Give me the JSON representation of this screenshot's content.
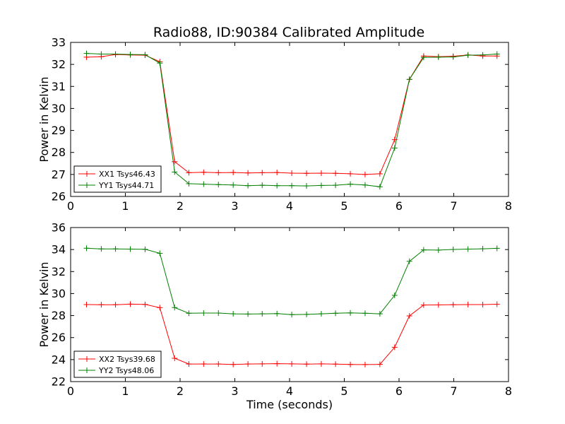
{
  "figure": {
    "title": "Radio88, ID:90384 Calibrated Amplitude"
  },
  "chart_data": [
    {
      "type": "line",
      "title": "Radio88, ID:90384 Calibrated Amplitude",
      "xlabel": "",
      "ylabel": "Power in Kelvin",
      "xlim": [
        0,
        8
      ],
      "ylim": [
        26,
        33
      ],
      "xticks": [
        "0",
        "1",
        "2",
        "3",
        "4",
        "5",
        "6",
        "7",
        "8"
      ],
      "yticks": [
        "26",
        "27",
        "28",
        "29",
        "30",
        "31",
        "32",
        "33"
      ],
      "grid": false,
      "legend_position": "lower-left",
      "x": [
        0.29,
        0.56,
        0.82,
        1.09,
        1.36,
        1.63,
        1.9,
        2.16,
        2.43,
        2.7,
        2.97,
        3.24,
        3.5,
        3.77,
        4.04,
        4.31,
        4.58,
        4.84,
        5.11,
        5.38,
        5.65,
        5.92,
        6.19,
        6.45,
        6.72,
        6.99,
        7.26,
        7.53,
        7.79
      ],
      "series": [
        {
          "name": "XX1 Tsys46.43",
          "color": "#ff0000",
          "values": [
            32.33,
            32.35,
            32.45,
            32.43,
            32.42,
            32.12,
            27.58,
            27.08,
            27.1,
            27.08,
            27.09,
            27.07,
            27.08,
            27.09,
            27.06,
            27.05,
            27.06,
            27.05,
            27.03,
            27.0,
            27.03,
            28.58,
            31.32,
            32.38,
            32.35,
            32.37,
            32.43,
            32.38,
            32.38
          ]
        },
        {
          "name": "YY1 Tsys44.71",
          "color": "#008000",
          "values": [
            32.5,
            32.47,
            32.47,
            32.45,
            32.44,
            32.06,
            27.11,
            26.58,
            26.56,
            26.54,
            26.52,
            26.49,
            26.51,
            26.49,
            26.49,
            26.48,
            26.5,
            26.51,
            26.56,
            26.52,
            26.44,
            28.2,
            31.32,
            32.32,
            32.33,
            32.34,
            32.42,
            32.43,
            32.47
          ]
        }
      ]
    },
    {
      "type": "line",
      "title": "",
      "xlabel": "Time (seconds)",
      "ylabel": "Power in Kelvin",
      "xlim": [
        0,
        8
      ],
      "ylim": [
        22,
        36
      ],
      "xticks": [
        "0",
        "1",
        "2",
        "3",
        "4",
        "5",
        "6",
        "7",
        "8"
      ],
      "yticks": [
        "22",
        "24",
        "26",
        "28",
        "30",
        "32",
        "34",
        "36"
      ],
      "grid": false,
      "legend_position": "lower-left",
      "x": [
        0.29,
        0.56,
        0.82,
        1.09,
        1.36,
        1.63,
        1.9,
        2.16,
        2.43,
        2.7,
        2.97,
        3.24,
        3.5,
        3.77,
        4.04,
        4.31,
        4.58,
        4.84,
        5.11,
        5.38,
        5.65,
        5.92,
        6.19,
        6.45,
        6.72,
        6.99,
        7.26,
        7.53,
        7.79
      ],
      "series": [
        {
          "name": "XX2 Tsys39.68",
          "color": "#ff0000",
          "values": [
            29.0,
            28.99,
            28.99,
            29.04,
            29.01,
            28.72,
            24.12,
            23.6,
            23.6,
            23.6,
            23.56,
            23.6,
            23.61,
            23.63,
            23.61,
            23.59,
            23.61,
            23.59,
            23.56,
            23.55,
            23.57,
            25.12,
            27.97,
            28.96,
            28.97,
            28.99,
            29.0,
            29.0,
            29.03
          ]
        },
        {
          "name": "YY2 Tsys48.06",
          "color": "#008000",
          "values": [
            34.12,
            34.06,
            34.06,
            34.04,
            34.02,
            33.66,
            28.73,
            28.21,
            28.23,
            28.23,
            28.16,
            28.14,
            28.16,
            28.18,
            28.09,
            28.11,
            28.16,
            28.21,
            28.24,
            28.21,
            28.16,
            29.84,
            32.93,
            33.97,
            33.95,
            34.01,
            34.04,
            34.07,
            34.11
          ]
        }
      ]
    }
  ]
}
